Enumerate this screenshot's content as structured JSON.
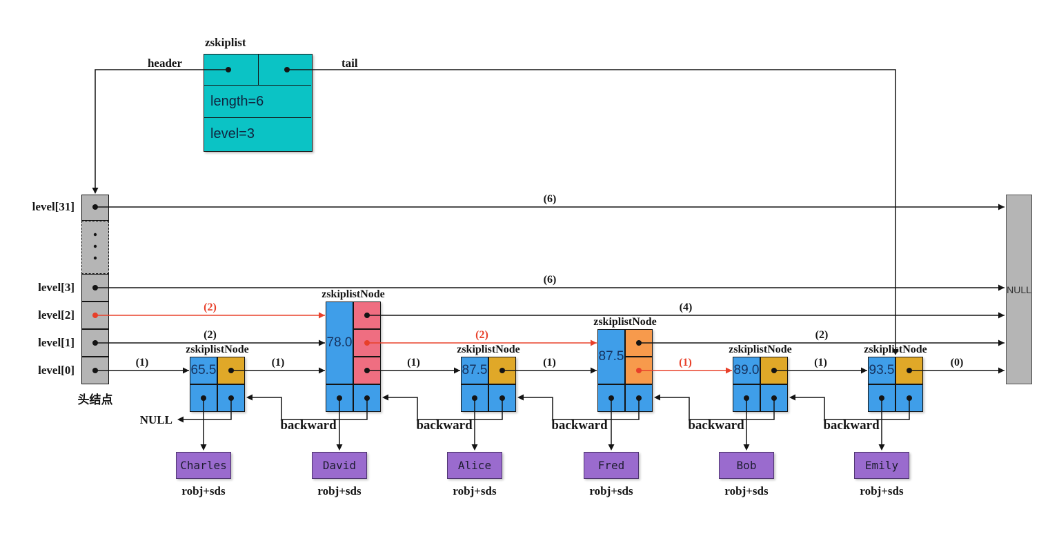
{
  "diagram": {
    "zskiplist": {
      "title": "zskiplist",
      "header_label": "header",
      "tail_label": "tail",
      "length_field": "length=6",
      "level_field": "level=3"
    },
    "head_node": {
      "caption": "头结点",
      "levels": [
        "level[31]",
        "level[3]",
        "level[2]",
        "level[1]",
        "level[0]"
      ]
    },
    "null_box_label": "NULL",
    "null_backward_label": "NULL",
    "backward_label": "backward",
    "node_title": "zskiplistNode",
    "obj_type_label": "robj+sds",
    "nodes": [
      {
        "score": "65.5",
        "member": "Charles",
        "levels": 1,
        "level_cell_color": "#e0a828",
        "red_dot_levels": []
      },
      {
        "score": "78.0",
        "member": "David",
        "levels": 3,
        "level_cell_color": "#ef6e81",
        "red_dot_levels": [
          1
        ]
      },
      {
        "score": "87.5",
        "member": "Alice",
        "levels": 1,
        "level_cell_color": "#e0a828",
        "red_dot_levels": []
      },
      {
        "score": "87.5",
        "member": "Fred",
        "levels": 2,
        "level_cell_color": "#f79a4c",
        "red_dot_levels": [
          0
        ]
      },
      {
        "score": "89.0",
        "member": "Bob",
        "levels": 1,
        "level_cell_color": "#e0a828",
        "red_dot_levels": []
      },
      {
        "score": "93.5",
        "member": "Emily",
        "levels": 1,
        "level_cell_color": "#e0a828",
        "red_dot_levels": []
      }
    ],
    "forward_arrows": [
      {
        "src": "head",
        "level": 31,
        "dst": "null",
        "span": "(6)",
        "red": false
      },
      {
        "src": "head",
        "level": 3,
        "dst": "null",
        "span": "(6)",
        "red": false
      },
      {
        "src": "head",
        "level": 2,
        "dst": 1,
        "span": "(2)",
        "red": true
      },
      {
        "src": "head",
        "level": 1,
        "dst": 1,
        "span": "(2)",
        "red": false
      },
      {
        "src": "head",
        "level": 0,
        "dst": 0,
        "span": "(1)",
        "red": false
      },
      {
        "src": 0,
        "level": 0,
        "dst": 1,
        "span": "(1)",
        "red": false
      },
      {
        "src": 1,
        "level": 2,
        "dst": "null",
        "span": "(4)",
        "red": false
      },
      {
        "src": 1,
        "level": 1,
        "dst": 3,
        "span": "(2)",
        "red": true
      },
      {
        "src": 1,
        "level": 0,
        "dst": 2,
        "span": "(1)",
        "red": false
      },
      {
        "src": 2,
        "level": 0,
        "dst": 3,
        "span": "(1)",
        "red": false
      },
      {
        "src": 3,
        "level": 1,
        "dst": "null",
        "span": "(2)",
        "red": false
      },
      {
        "src": 3,
        "level": 0,
        "dst": 4,
        "span": "(1)",
        "red": true
      },
      {
        "src": 4,
        "level": 0,
        "dst": 5,
        "span": "(1)",
        "red": false
      },
      {
        "src": 5,
        "level": 0,
        "dst": "null",
        "span": "(0)",
        "red": false
      }
    ],
    "colors": {
      "cyan": "#0bc3c5",
      "blue": "#3f9ee9",
      "yellow": "#e0a828",
      "pink": "#ef6e81",
      "orange": "#f79a4c",
      "purple": "#9a6bce",
      "gray": "#b5b5b5",
      "red": "#e8402a",
      "line": "#141414",
      "score_text": "#16325e"
    }
  }
}
